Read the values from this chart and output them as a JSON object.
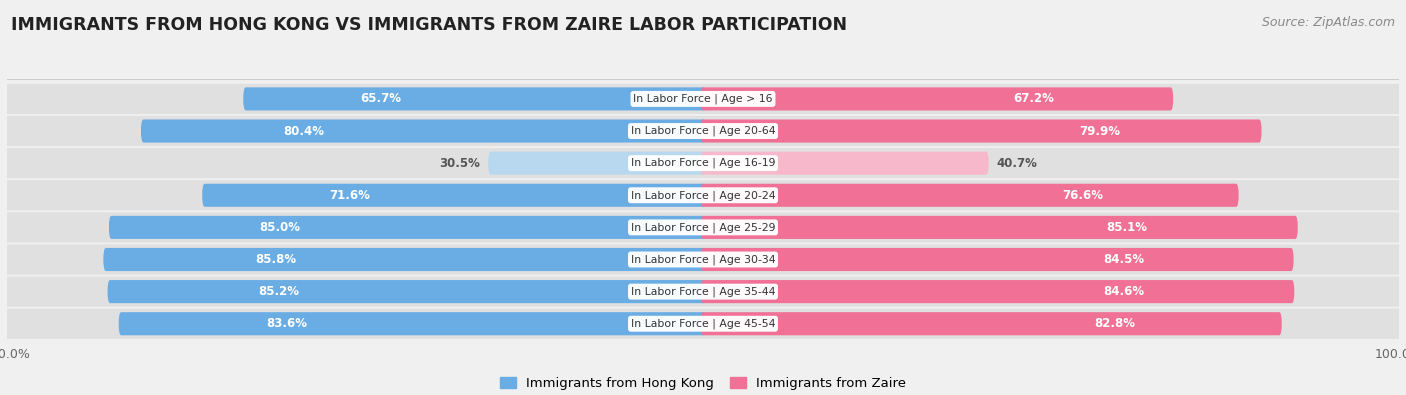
{
  "title": "IMMIGRANTS FROM HONG KONG VS IMMIGRANTS FROM ZAIRE LABOR PARTICIPATION",
  "source": "Source: ZipAtlas.com",
  "categories": [
    "In Labor Force | Age > 16",
    "In Labor Force | Age 20-64",
    "In Labor Force | Age 16-19",
    "In Labor Force | Age 20-24",
    "In Labor Force | Age 25-29",
    "In Labor Force | Age 30-34",
    "In Labor Force | Age 35-44",
    "In Labor Force | Age 45-54"
  ],
  "hk_values": [
    65.7,
    80.4,
    30.5,
    71.6,
    85.0,
    85.8,
    85.2,
    83.6
  ],
  "zaire_values": [
    67.2,
    79.9,
    40.7,
    76.6,
    85.1,
    84.5,
    84.6,
    82.8
  ],
  "hk_color": "#6aade4",
  "zaire_color": "#f07096",
  "hk_color_light": "#b8d8f0",
  "zaire_color_light": "#f8b8cc",
  "label_hk": "Immigrants from Hong Kong",
  "label_zaire": "Immigrants from Zaire",
  "bg_color": "#f0f0f0",
  "row_bg_color": "#e0e0e0",
  "max_val": 100.0,
  "bar_height": 0.72,
  "title_fontsize": 12.5,
  "source_fontsize": 9,
  "val_fontsize": 8.5,
  "cat_fontsize": 7.8,
  "threshold_white_label": 55
}
